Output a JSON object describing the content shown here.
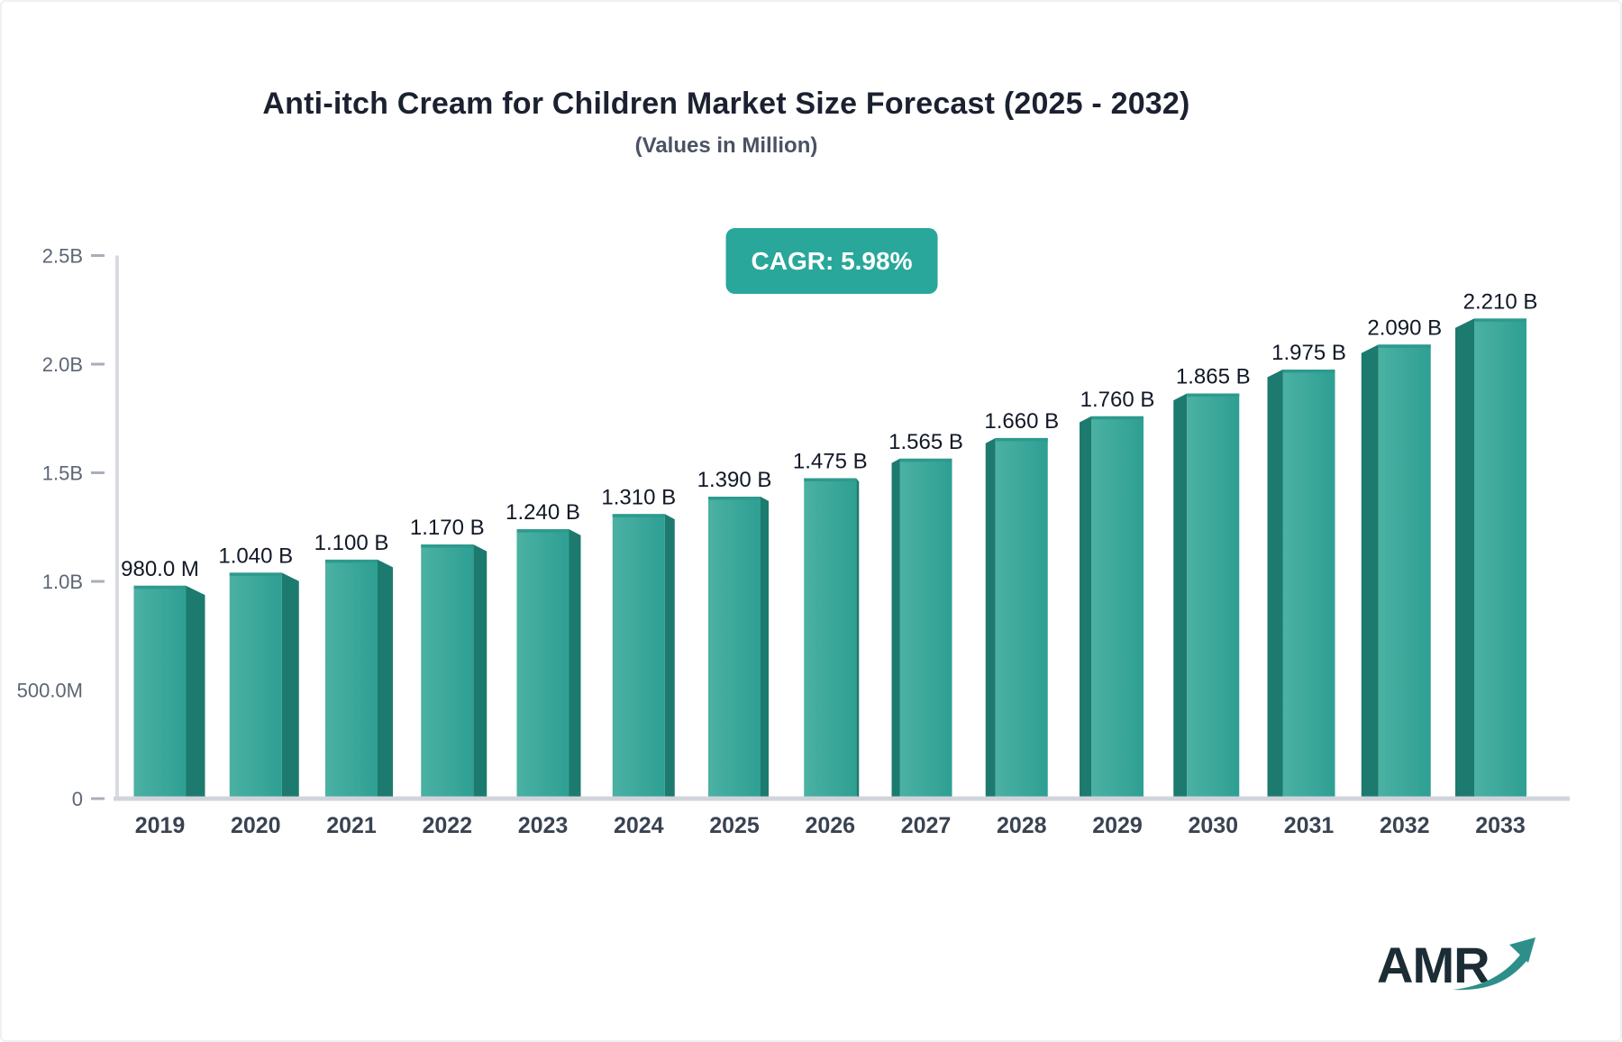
{
  "header": {
    "title": "Anti-itch Cream for Children Market Size Forecast (2025 - 2032)",
    "subtitle": "(Values in Million)",
    "cagr_badge": "CAGR: 5.98%"
  },
  "logo": {
    "text": "AMR"
  },
  "chart_data": {
    "type": "bar",
    "title": "Anti-itch Cream for Children Market Size Forecast (2025 - 2032)",
    "subtitle": "(Values in Million)",
    "cagr_percent": "5.98%",
    "categories": [
      "2019",
      "2020",
      "2021",
      "2022",
      "2023",
      "2024",
      "2025",
      "2026",
      "2027",
      "2028",
      "2029",
      "2030",
      "2031",
      "2032",
      "2033"
    ],
    "values_billions": [
      0.98,
      1.04,
      1.1,
      1.17,
      1.24,
      1.31,
      1.39,
      1.475,
      1.565,
      1.66,
      1.76,
      1.865,
      1.975,
      2.09,
      2.21
    ],
    "value_labels": [
      "980.0 M",
      "1.040 B",
      "1.100 B",
      "1.170 B",
      "1.240 B",
      "1.310 B",
      "1.390 B",
      "1.475 B",
      "1.565 B",
      "1.660 B",
      "1.760 B",
      "1.865 B",
      "1.975 B",
      "2.090 B",
      "2.210 B"
    ],
    "xlabel": "",
    "ylabel": "",
    "ylim": [
      0,
      2.5
    ],
    "y_ticks": [
      {
        "label": "2.5B",
        "value": 2.5,
        "dash": true
      },
      {
        "label": "2.0B",
        "value": 2.0,
        "dash": true
      },
      {
        "label": "1.5B",
        "value": 1.5,
        "dash": true
      },
      {
        "label": "1.0B",
        "value": 1.0,
        "dash": true
      },
      {
        "label": "500.0M",
        "value": 0.5,
        "dash": false
      },
      {
        "label": "0",
        "value": 0.0,
        "dash": true
      }
    ],
    "grid": false,
    "legend": "none",
    "bar_style": "3d-perspective-toward-center",
    "colors": {
      "bar_front_light": "#4bb1a3",
      "bar_front_dark": "#2e9f93",
      "bar_side": "#1d7a6e",
      "bar_top_edge": "#2d9a8e",
      "badge_bg": "#29a79b",
      "axis_line": "#d9dbe3",
      "tick_dash": "#a8afba",
      "tick_text": "#5d6674",
      "x_tick_text": "#394351",
      "value_text": "#111827",
      "logo_navy": "#1b2c35",
      "logo_teal": "#2e8f8a"
    }
  }
}
